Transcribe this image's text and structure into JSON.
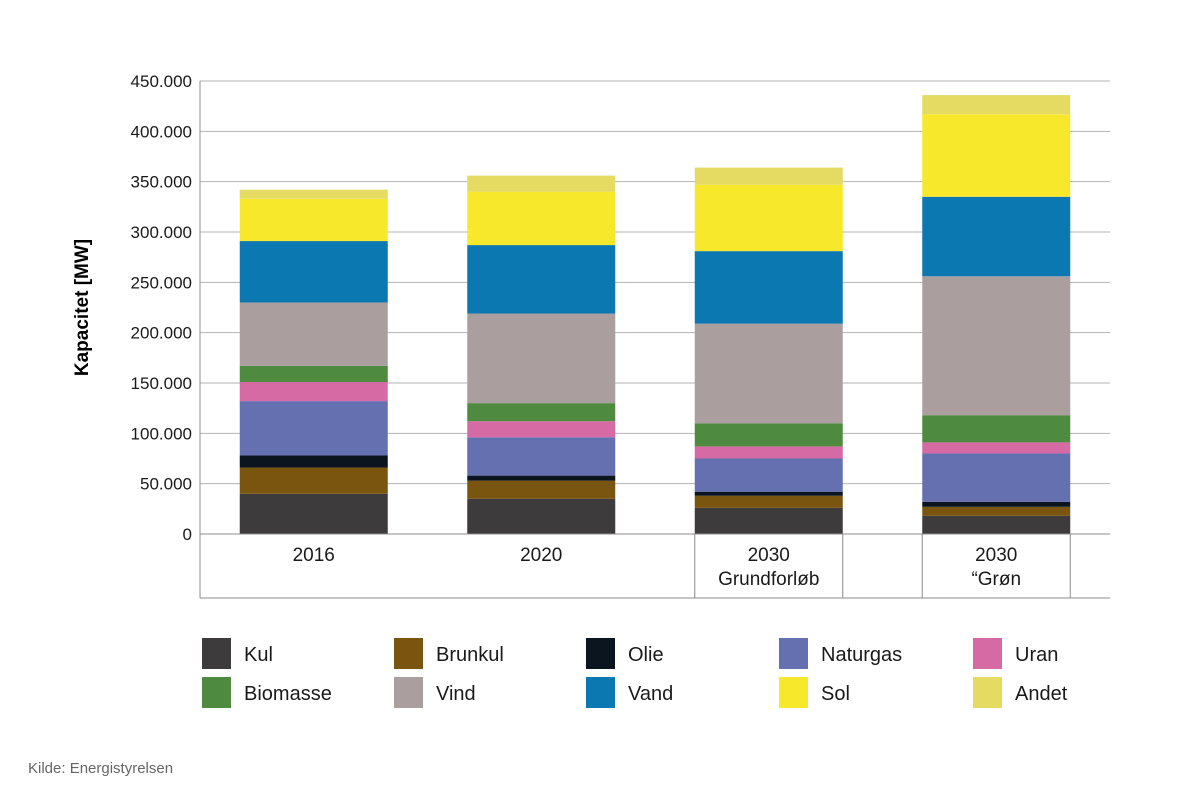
{
  "chart_data": {
    "type": "bar",
    "stacked": true,
    "title": "",
    "xlabel": "",
    "ylabel": "Kapacitet [MW]",
    "ylim": [
      0,
      450000
    ],
    "yticks": [
      0,
      50000,
      100000,
      150000,
      200000,
      250000,
      300000,
      350000,
      400000,
      450000
    ],
    "ytick_labels": [
      "0",
      "50.000",
      "100.000",
      "150.000",
      "200.000",
      "250.000",
      "300.000",
      "350.000",
      "400.000",
      "450.000"
    ],
    "grid": true,
    "legend_position": "bottom",
    "categories": [
      [
        "2016"
      ],
      [
        "2020"
      ],
      [
        "2030",
        "Grundforløb"
      ],
      [
        "2030",
        "“Grøn"
      ]
    ],
    "series": [
      {
        "name": "Kul",
        "color": "#3d3b3c",
        "values": [
          40000,
          35000,
          26000,
          18000
        ]
      },
      {
        "name": "Brunkul",
        "color": "#7a5510",
        "values": [
          26000,
          18000,
          12000,
          9000
        ]
      },
      {
        "name": "Olie",
        "color": "#0a1520",
        "values": [
          12000,
          5000,
          4000,
          5000
        ]
      },
      {
        "name": "Naturgas",
        "color": "#6470b0",
        "values": [
          54000,
          38000,
          33000,
          48000
        ]
      },
      {
        "name": "Uran",
        "color": "#d66aa4",
        "values": [
          19000,
          16000,
          12000,
          11000
        ]
      },
      {
        "name": "Biomasse",
        "color": "#4e8a3f",
        "values": [
          16000,
          18000,
          23000,
          27000
        ]
      },
      {
        "name": "Vind",
        "color": "#ab9e9f",
        "values": [
          63000,
          89000,
          99000,
          138000
        ]
      },
      {
        "name": "Vand",
        "color": "#0b78b2",
        "values": [
          61000,
          68000,
          72000,
          79000
        ]
      },
      {
        "name": "Sol",
        "color": "#f7e82c",
        "values": [
          42000,
          53000,
          66000,
          82000
        ]
      },
      {
        "name": "Andet",
        "color": "#e5db62",
        "values": [
          9000,
          16000,
          17000,
          19000
        ]
      }
    ]
  },
  "source": "Kilde: Energistyrelsen"
}
